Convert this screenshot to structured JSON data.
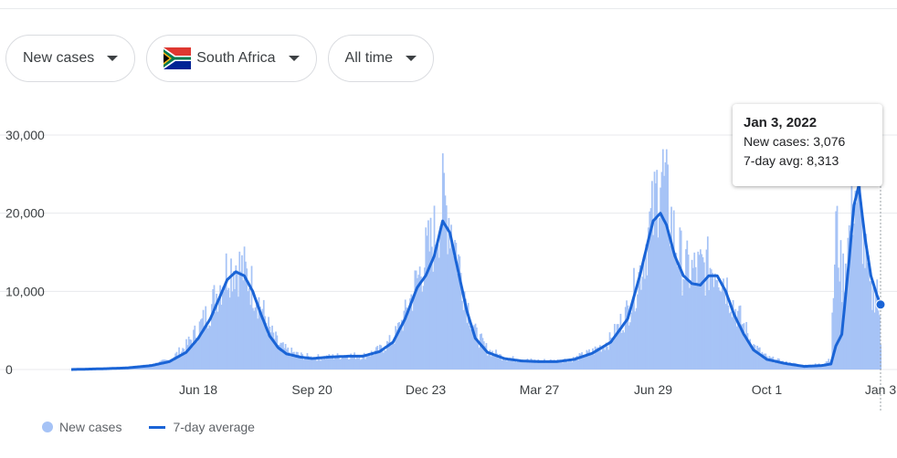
{
  "filters": {
    "metric": "New cases",
    "country": "South Africa",
    "range": "All time"
  },
  "tooltip": {
    "date": "Jan 3, 2022",
    "new_cases": "New cases: 3,076",
    "avg": "7-day avg: 8,313"
  },
  "legend": {
    "new_cases": "New cases",
    "avg": "7-day average"
  },
  "colors": {
    "bars": "#a6c3f6",
    "avg_line": "#1a64d6",
    "grid": "#e8eaed"
  },
  "chart_data": {
    "type": "area",
    "x_ticks": [
      "Jun 18",
      "Sep 20",
      "Dec 23",
      "Mar 27",
      "Jun 29",
      "Oct 1",
      "Jan 3"
    ],
    "y_ticks": [
      "0",
      "10,000",
      "20,000",
      "30,000"
    ],
    "ylim": [
      0,
      30000
    ],
    "grid": true,
    "legend_position": "bottom-left",
    "x_range": [
      "2020-03-05",
      "2022-01-03"
    ],
    "series": [
      {
        "name": "New cases",
        "type": "bar",
        "points": [
          [
            "2020-03-05",
            0
          ],
          [
            "2020-04-01",
            100
          ],
          [
            "2020-04-20",
            200
          ],
          [
            "2020-05-10",
            600
          ],
          [
            "2020-05-25",
            1200
          ],
          [
            "2020-06-08",
            3000
          ],
          [
            "2020-06-18",
            5200
          ],
          [
            "2020-06-28",
            7800
          ],
          [
            "2020-07-05",
            10500
          ],
          [
            "2020-07-12",
            13000
          ],
          [
            "2020-07-19",
            13500
          ],
          [
            "2020-07-26",
            12500
          ],
          [
            "2020-08-02",
            10500
          ],
          [
            "2020-08-09",
            8000
          ],
          [
            "2020-08-16",
            5000
          ],
          [
            "2020-08-23",
            3300
          ],
          [
            "2020-08-30",
            2400
          ],
          [
            "2020-09-10",
            1800
          ],
          [
            "2020-09-20",
            1500
          ],
          [
            "2020-10-05",
            1600
          ],
          [
            "2020-10-20",
            1800
          ],
          [
            "2020-11-01",
            1700
          ],
          [
            "2020-11-15",
            2500
          ],
          [
            "2020-11-26",
            3800
          ],
          [
            "2020-12-06",
            7000
          ],
          [
            "2020-12-16",
            11500
          ],
          [
            "2020-12-23",
            14500
          ],
          [
            "2020-12-30",
            17000
          ],
          [
            "2021-01-06",
            21500
          ],
          [
            "2021-01-12",
            19500
          ],
          [
            "2021-01-19",
            14000
          ],
          [
            "2021-01-26",
            8500
          ],
          [
            "2021-02-02",
            4600
          ],
          [
            "2021-02-12",
            2500
          ],
          [
            "2021-02-26",
            1500
          ],
          [
            "2021-03-12",
            1200
          ],
          [
            "2021-03-27",
            1100
          ],
          [
            "2021-04-10",
            1100
          ],
          [
            "2021-04-25",
            1400
          ],
          [
            "2021-05-10",
            2300
          ],
          [
            "2021-05-25",
            3800
          ],
          [
            "2021-06-08",
            7500
          ],
          [
            "2021-06-18",
            12500
          ],
          [
            "2021-06-25",
            17500
          ],
          [
            "2021-06-29",
            19500
          ],
          [
            "2021-07-05",
            26000
          ],
          [
            "2021-07-10",
            22000
          ],
          [
            "2021-07-17",
            16500
          ],
          [
            "2021-07-24",
            13000
          ],
          [
            "2021-07-31",
            12500
          ],
          [
            "2021-08-07",
            12800
          ],
          [
            "2021-08-14",
            13200
          ],
          [
            "2021-08-21",
            13500
          ],
          [
            "2021-08-28",
            11000
          ],
          [
            "2021-09-04",
            8000
          ],
          [
            "2021-09-12",
            5500
          ],
          [
            "2021-09-20",
            3000
          ],
          [
            "2021-10-01",
            1500
          ],
          [
            "2021-10-15",
            900
          ],
          [
            "2021-11-01",
            500
          ],
          [
            "2021-11-15",
            700
          ],
          [
            "2021-11-23",
            1500
          ],
          [
            "2021-11-27",
            18500
          ],
          [
            "2021-12-02",
            11500
          ],
          [
            "2021-12-08",
            17000
          ],
          [
            "2021-12-12",
            23000
          ],
          [
            "2021-12-16",
            22000
          ],
          [
            "2021-12-21",
            15000
          ],
          [
            "2021-12-26",
            9000
          ],
          [
            "2021-12-31",
            11000
          ],
          [
            "2022-01-03",
            3076
          ]
        ]
      },
      {
        "name": "7-day average",
        "type": "line",
        "points": [
          [
            "2020-03-05",
            0
          ],
          [
            "2020-04-01",
            100
          ],
          [
            "2020-04-20",
            200
          ],
          [
            "2020-05-10",
            500
          ],
          [
            "2020-05-25",
            1000
          ],
          [
            "2020-06-08",
            2200
          ],
          [
            "2020-06-18",
            4000
          ],
          [
            "2020-06-28",
            6500
          ],
          [
            "2020-07-05",
            9000
          ],
          [
            "2020-07-12",
            11500
          ],
          [
            "2020-07-19",
            12500
          ],
          [
            "2020-07-26",
            12000
          ],
          [
            "2020-08-02",
            10000
          ],
          [
            "2020-08-09",
            7000
          ],
          [
            "2020-08-16",
            4300
          ],
          [
            "2020-08-23",
            2800
          ],
          [
            "2020-08-30",
            2000
          ],
          [
            "2020-09-10",
            1600
          ],
          [
            "2020-09-20",
            1400
          ],
          [
            "2020-10-05",
            1600
          ],
          [
            "2020-10-20",
            1700
          ],
          [
            "2020-11-01",
            1700
          ],
          [
            "2020-11-15",
            2300
          ],
          [
            "2020-11-26",
            3500
          ],
          [
            "2020-12-06",
            6500
          ],
          [
            "2020-12-16",
            10500
          ],
          [
            "2020-12-23",
            12000
          ],
          [
            "2020-12-30",
            14500
          ],
          [
            "2021-01-06",
            19000
          ],
          [
            "2021-01-12",
            17500
          ],
          [
            "2021-01-19",
            12500
          ],
          [
            "2021-01-26",
            7500
          ],
          [
            "2021-02-02",
            4000
          ],
          [
            "2021-02-12",
            2200
          ],
          [
            "2021-02-26",
            1400
          ],
          [
            "2021-03-12",
            1100
          ],
          [
            "2021-03-27",
            1000
          ],
          [
            "2021-04-10",
            1000
          ],
          [
            "2021-04-25",
            1300
          ],
          [
            "2021-05-10",
            2100
          ],
          [
            "2021-05-25",
            3500
          ],
          [
            "2021-06-08",
            6500
          ],
          [
            "2021-06-18",
            12000
          ],
          [
            "2021-06-25",
            16500
          ],
          [
            "2021-06-29",
            19000
          ],
          [
            "2021-07-05",
            20000
          ],
          [
            "2021-07-10",
            18500
          ],
          [
            "2021-07-17",
            14500
          ],
          [
            "2021-07-24",
            12000
          ],
          [
            "2021-07-31",
            11000
          ],
          [
            "2021-08-07",
            10800
          ],
          [
            "2021-08-14",
            12000
          ],
          [
            "2021-08-21",
            12000
          ],
          [
            "2021-08-28",
            10000
          ],
          [
            "2021-09-04",
            7000
          ],
          [
            "2021-09-12",
            4500
          ],
          [
            "2021-09-20",
            2500
          ],
          [
            "2021-10-01",
            1300
          ],
          [
            "2021-10-15",
            800
          ],
          [
            "2021-11-01",
            400
          ],
          [
            "2021-11-15",
            500
          ],
          [
            "2021-11-23",
            700
          ],
          [
            "2021-11-27",
            3000
          ],
          [
            "2021-12-02",
            4500
          ],
          [
            "2021-12-08",
            14000
          ],
          [
            "2021-12-12",
            21000
          ],
          [
            "2021-12-16",
            23500
          ],
          [
            "2021-12-21",
            17000
          ],
          [
            "2021-12-26",
            12000
          ],
          [
            "2021-12-31",
            9500
          ],
          [
            "2022-01-03",
            8313
          ]
        ]
      }
    ]
  }
}
